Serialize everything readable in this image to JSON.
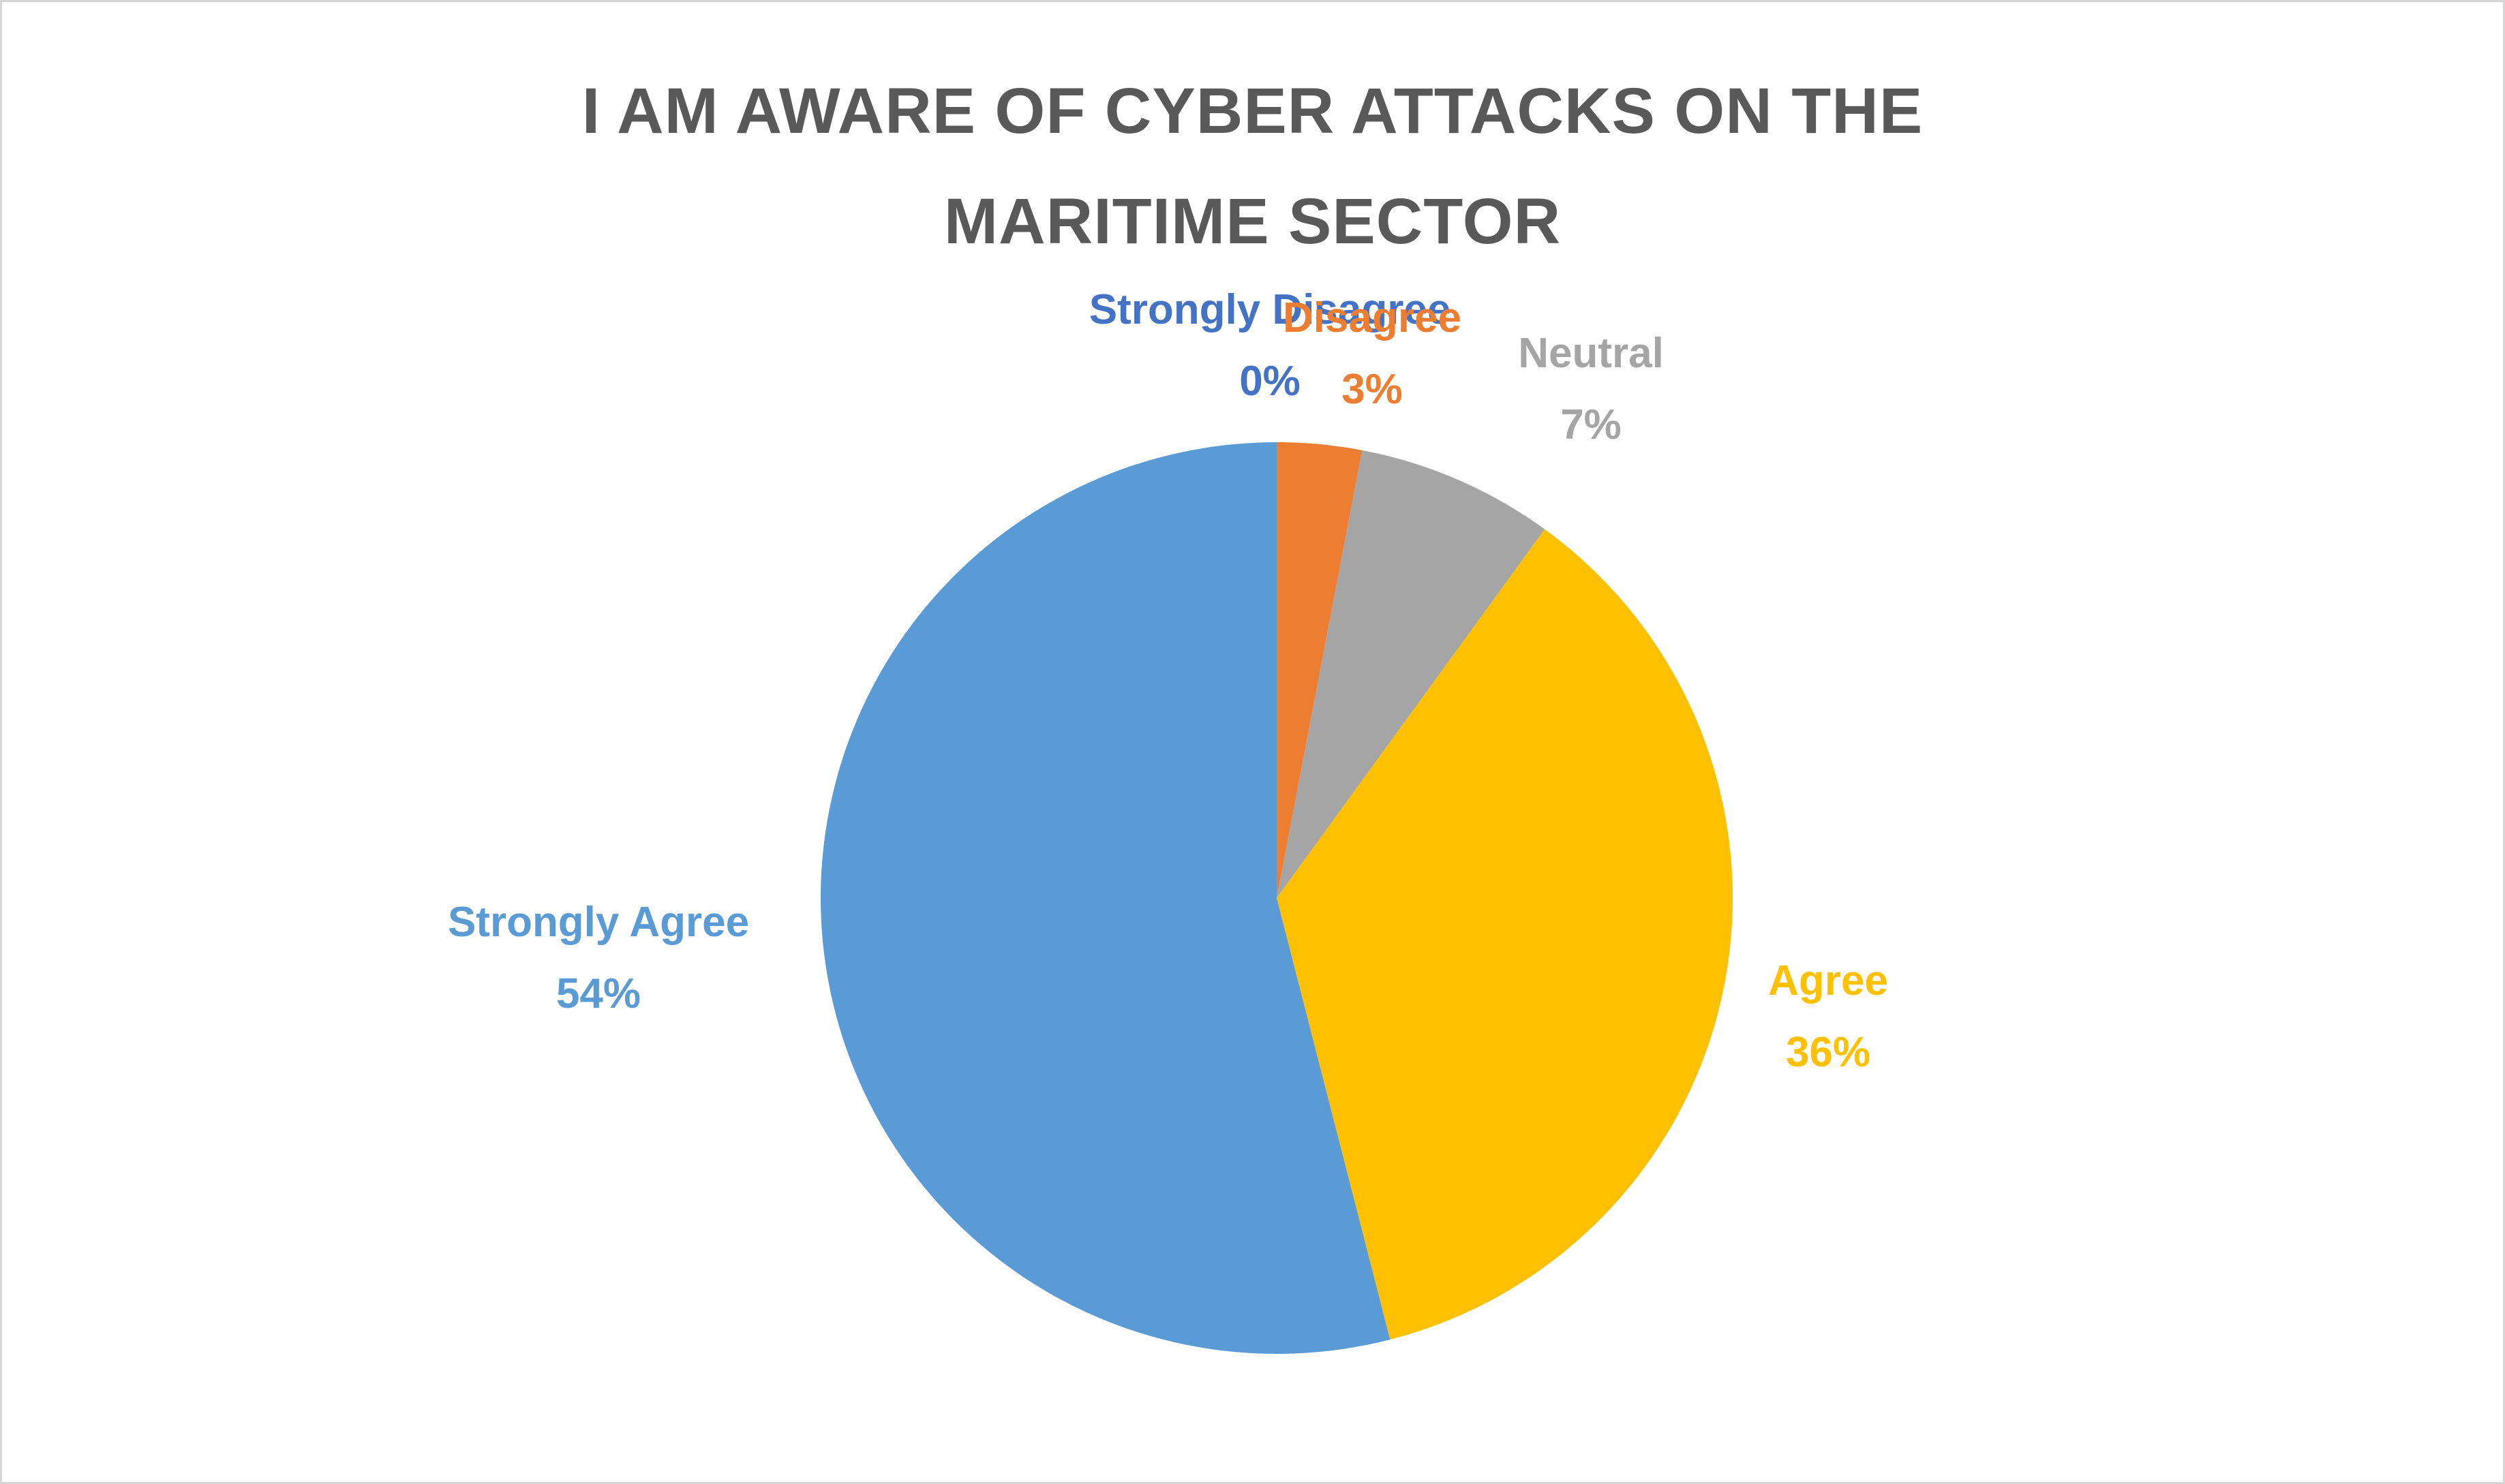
{
  "frame": {
    "background": "#FFFFFF",
    "border_color": "#D6D6D6"
  },
  "chart_data": {
    "type": "pie",
    "title": "I AM AWARE OF CYBER ATTACKS ON THE MARITIME SECTOR",
    "title_color": "#595959",
    "categories": [
      "Strongly Disagree",
      "Disagree",
      "Neutral",
      "Agree",
      "Strongly Agree"
    ],
    "values": [
      0,
      3,
      7,
      36,
      54
    ],
    "unit": "%",
    "direction": "clockwise",
    "start_angle_deg": 0,
    "legend_position": "none",
    "data_labels": "category name and percentage outside the pie, colored to match slice",
    "slices": [
      {
        "id": "strongly-disagree",
        "label": "Strongly Disagree",
        "pct": "0%",
        "value": 0,
        "color": "#4472C4"
      },
      {
        "id": "disagree",
        "label": "Disagree",
        "pct": "3%",
        "value": 3,
        "color": "#ED7D31"
      },
      {
        "id": "neutral",
        "label": "Neutral",
        "pct": "7%",
        "value": 7,
        "color": "#A5A5A5"
      },
      {
        "id": "agree",
        "label": "Agree",
        "pct": "36%",
        "value": 36,
        "color": "#FFC000"
      },
      {
        "id": "strongly-agree",
        "label": "Strongly Agree",
        "pct": "54%",
        "value": 54,
        "color": "#5B9BD5"
      }
    ]
  }
}
